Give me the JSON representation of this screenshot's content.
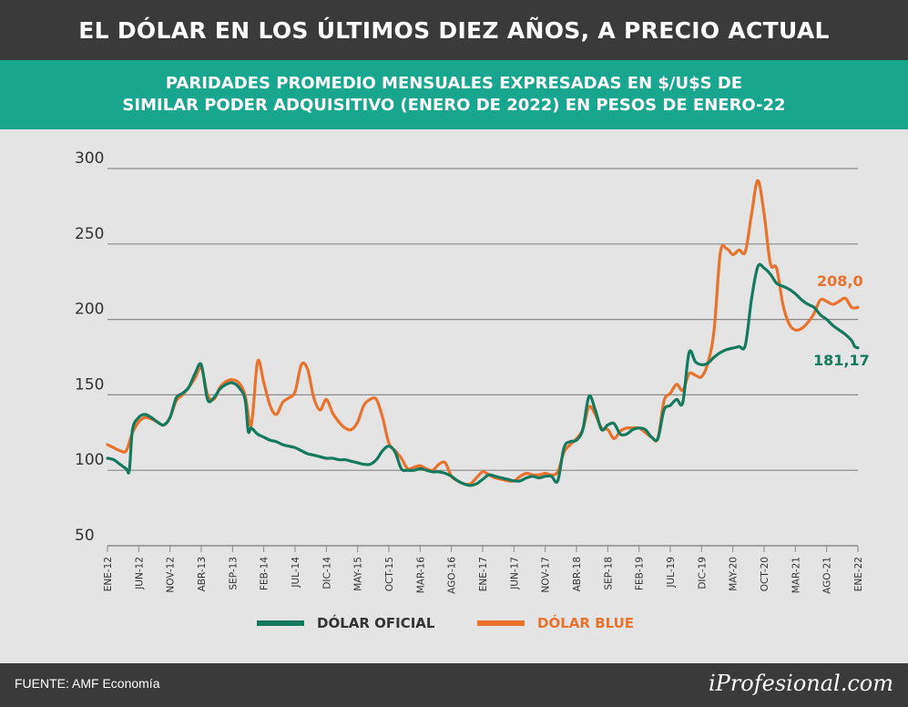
{
  "header": {
    "title": "EL DÓLAR EN LOS ÚLTIMOS DIEZ AÑOS, A PRECIO ACTUAL",
    "subtitle_line1": "PARIDADES PROMEDIO MENSUALES EXPRESADAS EN $/U$S DE",
    "subtitle_line2": "SIMILAR PODER ADQUISITIVO (ENERO DE 2022) EN PESOS DE ENERO-22"
  },
  "footer": {
    "source": "FUENTE: AMF Economía",
    "brand": "iProfesional.com"
  },
  "colors": {
    "oficial": "#15795e",
    "blue": "#e9722d",
    "grid": "#8a8a8a",
    "text": "#333333"
  },
  "chart_data": {
    "type": "line",
    "ylim": [
      50,
      300
    ],
    "yticks": [
      50,
      100,
      150,
      200,
      250,
      300
    ],
    "xlim": [
      0,
      120
    ],
    "x_ticks": [
      {
        "t": 0,
        "label": "ENE-12"
      },
      {
        "t": 5,
        "label": "JUN-12"
      },
      {
        "t": 10,
        "label": "NOV-12"
      },
      {
        "t": 15,
        "label": "ABR-13"
      },
      {
        "t": 20,
        "label": "SEP-13"
      },
      {
        "t": 25,
        "label": "FEB-14"
      },
      {
        "t": 30,
        "label": "JUL-14"
      },
      {
        "t": 35,
        "label": "DIC-14"
      },
      {
        "t": 40,
        "label": "MAY-15"
      },
      {
        "t": 45,
        "label": "OCT-15"
      },
      {
        "t": 50,
        "label": "MAR-16"
      },
      {
        "t": 55,
        "label": "AGO-16"
      },
      {
        "t": 60,
        "label": "ENE-17"
      },
      {
        "t": 65,
        "label": "JUN-17"
      },
      {
        "t": 70,
        "label": "NOV-17"
      },
      {
        "t": 75,
        "label": "ABR-18"
      },
      {
        "t": 80,
        "label": "SEP-18"
      },
      {
        "t": 85,
        "label": "FEB-19"
      },
      {
        "t": 90,
        "label": "JUL-19"
      },
      {
        "t": 95,
        "label": "DIC-19"
      },
      {
        "t": 100,
        "label": "MAY-20"
      },
      {
        "t": 105,
        "label": "OCT-20"
      },
      {
        "t": 110,
        "label": "MAR-21"
      },
      {
        "t": 115,
        "label": "AGO-21"
      },
      {
        "t": 120,
        "label": "ENE-22"
      }
    ],
    "series": [
      {
        "name": "DÓLAR OFICIAL",
        "color": "#15795e",
        "end_label": "181,17",
        "points": [
          [
            0,
            108
          ],
          [
            1,
            107
          ],
          [
            2,
            104
          ],
          [
            3,
            101
          ],
          [
            3.5,
            100
          ],
          [
            4,
            127
          ],
          [
            5,
            135
          ],
          [
            6,
            137
          ],
          [
            7,
            135
          ],
          [
            8,
            132
          ],
          [
            9,
            130
          ],
          [
            10,
            135
          ],
          [
            11,
            148
          ],
          [
            12,
            151
          ],
          [
            13,
            155
          ],
          [
            14,
            164
          ],
          [
            15,
            170
          ],
          [
            16,
            147
          ],
          [
            17,
            148
          ],
          [
            18,
            154
          ],
          [
            19,
            157
          ],
          [
            20,
            158
          ],
          [
            21,
            155
          ],
          [
            22,
            147
          ],
          [
            22.5,
            126
          ],
          [
            23,
            128
          ],
          [
            24,
            124
          ],
          [
            25,
            122
          ],
          [
            26,
            120
          ],
          [
            27,
            119
          ],
          [
            28,
            117
          ],
          [
            29,
            116
          ],
          [
            30,
            115
          ],
          [
            31,
            113
          ],
          [
            32,
            111
          ],
          [
            33,
            110
          ],
          [
            34,
            109
          ],
          [
            35,
            108
          ],
          [
            36,
            108
          ],
          [
            37,
            107
          ],
          [
            38,
            107
          ],
          [
            39,
            106
          ],
          [
            40,
            105
          ],
          [
            41,
            104
          ],
          [
            42,
            104
          ],
          [
            43,
            107
          ],
          [
            44,
            113
          ],
          [
            45,
            116
          ],
          [
            46,
            112
          ],
          [
            47,
            101
          ],
          [
            48,
            100
          ],
          [
            49,
            100
          ],
          [
            50,
            101
          ],
          [
            51,
            100
          ],
          [
            52,
            99
          ],
          [
            53,
            99
          ],
          [
            54,
            98
          ],
          [
            55,
            96
          ],
          [
            56,
            93
          ],
          [
            57,
            91
          ],
          [
            58,
            90
          ],
          [
            59,
            91
          ],
          [
            60,
            94
          ],
          [
            61,
            97
          ],
          [
            62,
            96
          ],
          [
            63,
            95
          ],
          [
            64,
            94
          ],
          [
            65,
            93
          ],
          [
            66,
            93
          ],
          [
            67,
            95
          ],
          [
            68,
            96
          ],
          [
            69,
            95
          ],
          [
            70,
            96
          ],
          [
            71,
            96
          ],
          [
            72,
            93
          ],
          [
            73,
            115
          ],
          [
            74,
            119
          ],
          [
            75,
            120
          ],
          [
            76,
            127
          ],
          [
            77,
            149
          ],
          [
            78,
            140
          ],
          [
            79,
            127
          ],
          [
            80,
            130
          ],
          [
            81,
            131
          ],
          [
            82,
            124
          ],
          [
            83,
            124
          ],
          [
            84,
            127
          ],
          [
            85,
            128
          ],
          [
            86,
            127
          ],
          [
            87,
            122
          ],
          [
            88,
            121
          ],
          [
            89,
            140
          ],
          [
            90,
            143
          ],
          [
            91,
            147
          ],
          [
            92,
            145
          ],
          [
            93,
            178
          ],
          [
            94,
            172
          ],
          [
            95,
            170
          ],
          [
            96,
            171
          ],
          [
            97,
            175
          ],
          [
            98,
            178
          ],
          [
            99,
            180
          ],
          [
            100,
            181
          ],
          [
            101,
            182
          ],
          [
            102,
            183
          ],
          [
            103,
            214
          ],
          [
            104,
            235
          ],
          [
            105,
            234
          ],
          [
            106,
            230
          ],
          [
            107,
            224
          ],
          [
            108,
            222
          ],
          [
            109,
            220
          ],
          [
            110,
            217
          ],
          [
            111,
            213
          ],
          [
            112,
            210
          ],
          [
            113,
            208
          ],
          [
            114,
            203
          ],
          [
            115,
            200
          ],
          [
            116,
            196
          ],
          [
            117,
            193
          ],
          [
            118,
            190
          ],
          [
            119,
            186
          ],
          [
            119.5,
            182
          ],
          [
            120,
            181.17
          ]
        ]
      },
      {
        "name": "DÓLAR BLUE",
        "color": "#e9722d",
        "end_label": "208,0",
        "points": [
          [
            0,
            117
          ],
          [
            1,
            115
          ],
          [
            2,
            113
          ],
          [
            3,
            113
          ],
          [
            4,
            125
          ],
          [
            5,
            132
          ],
          [
            6,
            135
          ],
          [
            7,
            134
          ],
          [
            8,
            132
          ],
          [
            9,
            130
          ],
          [
            10,
            135
          ],
          [
            11,
            146
          ],
          [
            12,
            150
          ],
          [
            13,
            155
          ],
          [
            14,
            161
          ],
          [
            15,
            168
          ],
          [
            16,
            150
          ],
          [
            17,
            147
          ],
          [
            18,
            155
          ],
          [
            19,
            159
          ],
          [
            20,
            160
          ],
          [
            21,
            158
          ],
          [
            22,
            150
          ],
          [
            23,
            130
          ],
          [
            24,
            172
          ],
          [
            25,
            158
          ],
          [
            26,
            143
          ],
          [
            27,
            137
          ],
          [
            28,
            145
          ],
          [
            29,
            148
          ],
          [
            30,
            152
          ],
          [
            31,
            170
          ],
          [
            32,
            167
          ],
          [
            33,
            148
          ],
          [
            34,
            140
          ],
          [
            35,
            147
          ],
          [
            36,
            138
          ],
          [
            37,
            132
          ],
          [
            38,
            128
          ],
          [
            39,
            127
          ],
          [
            40,
            132
          ],
          [
            41,
            143
          ],
          [
            42,
            147
          ],
          [
            43,
            147
          ],
          [
            44,
            135
          ],
          [
            45,
            118
          ],
          [
            46,
            113
          ],
          [
            47,
            108
          ],
          [
            48,
            101
          ],
          [
            49,
            102
          ],
          [
            50,
            103
          ],
          [
            51,
            101
          ],
          [
            52,
            100
          ],
          [
            53,
            104
          ],
          [
            54,
            105
          ],
          [
            55,
            96
          ],
          [
            56,
            93
          ],
          [
            57,
            91
          ],
          [
            58,
            91
          ],
          [
            59,
            95
          ],
          [
            60,
            99
          ],
          [
            61,
            97
          ],
          [
            62,
            95
          ],
          [
            63,
            94
          ],
          [
            64,
            93
          ],
          [
            65,
            93
          ],
          [
            66,
            96
          ],
          [
            67,
            98
          ],
          [
            68,
            97
          ],
          [
            69,
            97
          ],
          [
            70,
            98
          ],
          [
            71,
            97
          ],
          [
            72,
            99
          ],
          [
            73,
            112
          ],
          [
            74,
            117
          ],
          [
            75,
            121
          ],
          [
            76,
            127
          ],
          [
            77,
            142
          ],
          [
            78,
            137
          ],
          [
            79,
            128
          ],
          [
            80,
            127
          ],
          [
            81,
            121
          ],
          [
            82,
            126
          ],
          [
            83,
            128
          ],
          [
            84,
            128
          ],
          [
            85,
            128
          ],
          [
            86,
            125
          ],
          [
            87,
            122
          ],
          [
            88,
            121
          ],
          [
            89,
            146
          ],
          [
            90,
            151
          ],
          [
            91,
            157
          ],
          [
            92,
            153
          ],
          [
            93,
            164
          ],
          [
            94,
            163
          ],
          [
            95,
            162
          ],
          [
            96,
            171
          ],
          [
            97,
            193
          ],
          [
            98,
            244
          ],
          [
            99,
            247
          ],
          [
            100,
            243
          ],
          [
            101,
            246
          ],
          [
            102,
            245
          ],
          [
            103,
            270
          ],
          [
            104,
            292
          ],
          [
            105,
            270
          ],
          [
            106,
            237
          ],
          [
            107,
            234
          ],
          [
            108,
            210
          ],
          [
            109,
            197
          ],
          [
            110,
            193
          ],
          [
            111,
            194
          ],
          [
            112,
            198
          ],
          [
            113,
            204
          ],
          [
            114,
            213
          ],
          [
            115,
            212
          ],
          [
            116,
            210
          ],
          [
            117,
            212
          ],
          [
            118,
            214
          ],
          [
            119,
            208
          ],
          [
            120,
            208
          ]
        ]
      }
    ]
  }
}
